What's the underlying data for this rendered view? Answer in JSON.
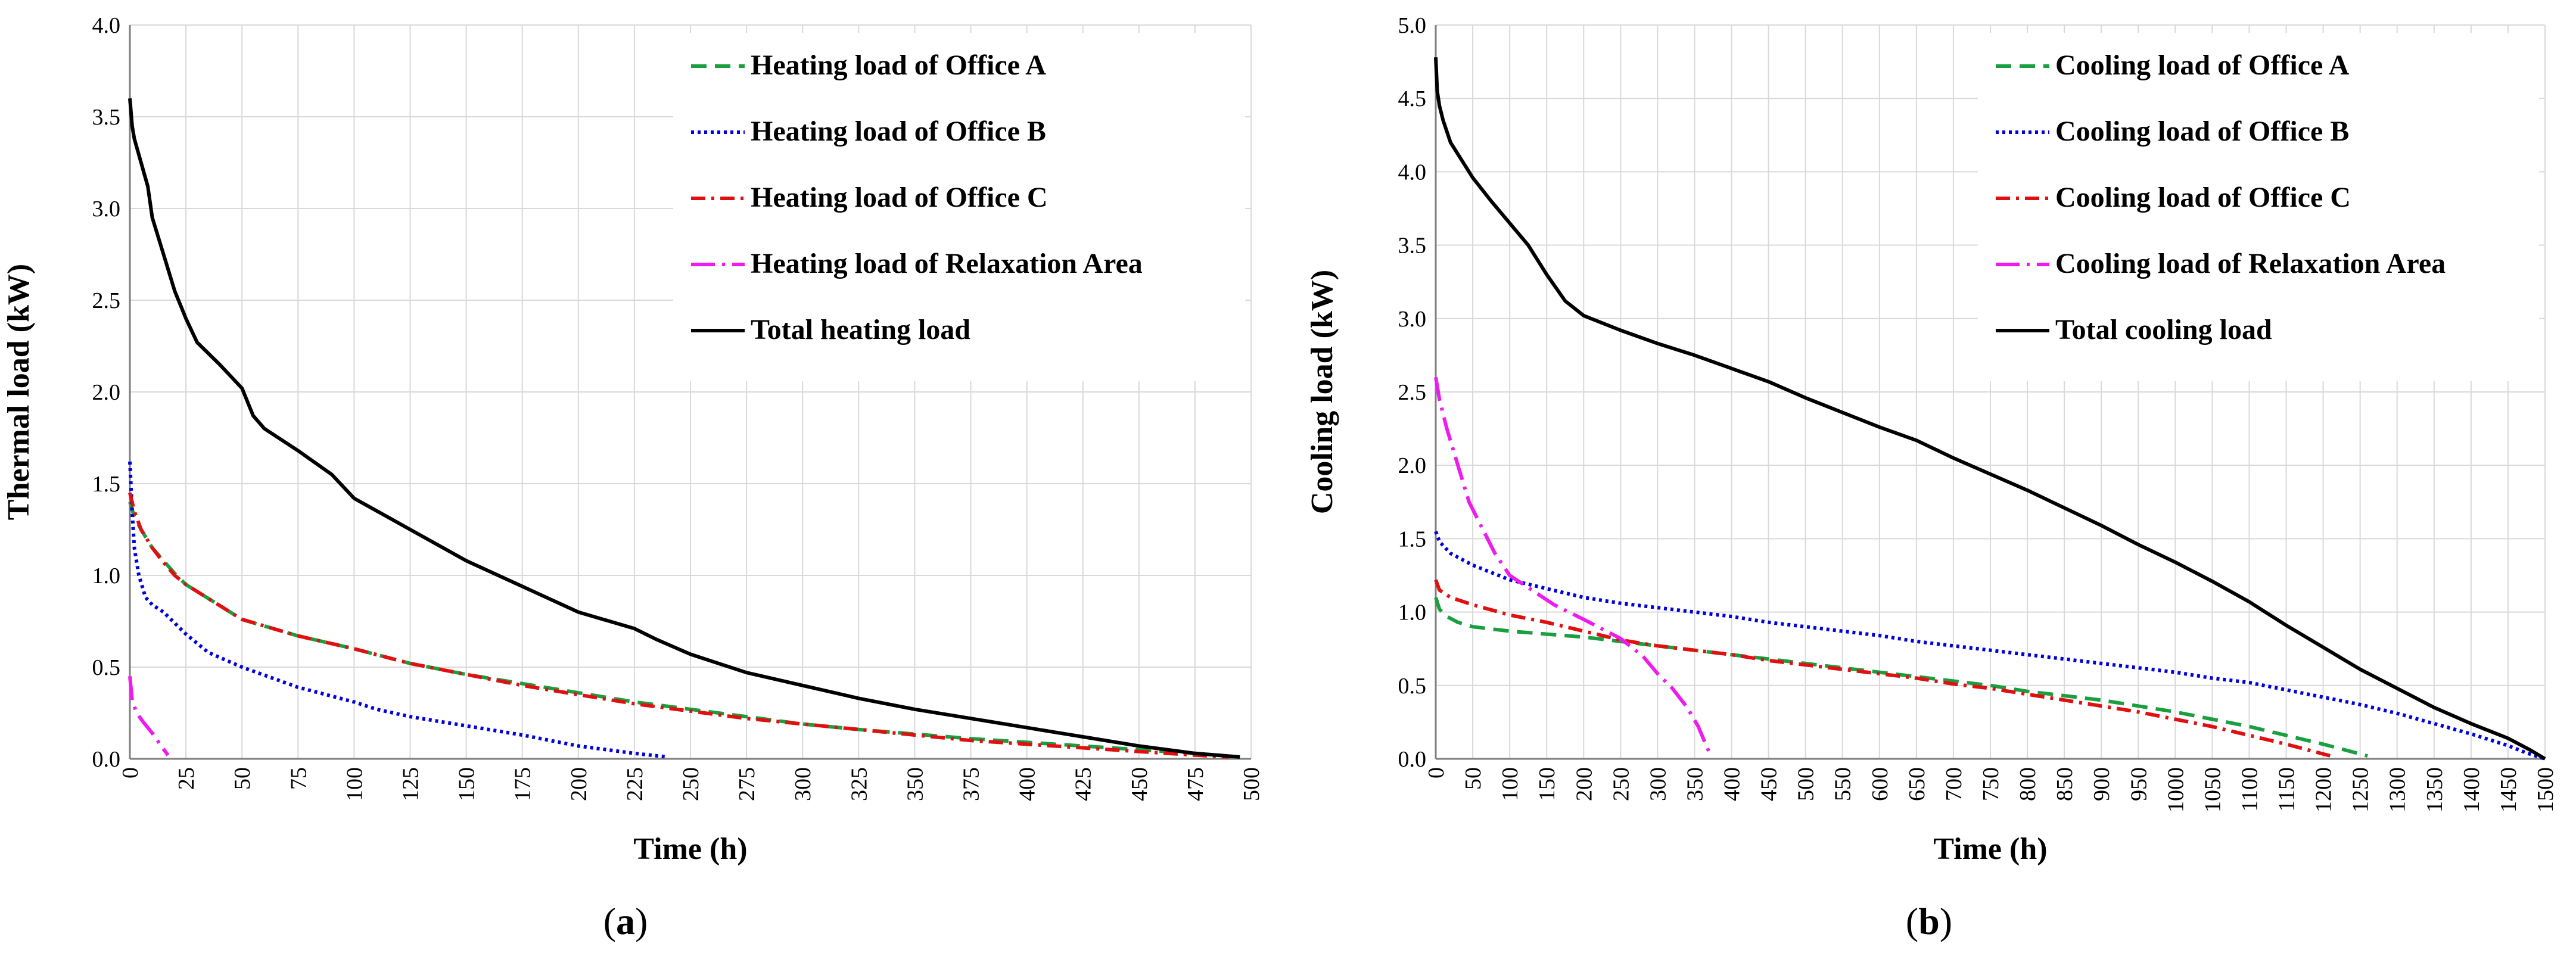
{
  "figure": {
    "panels": [
      {
        "open": "(",
        "letter": "a",
        "close": ")"
      },
      {
        "open": "(",
        "letter": "b",
        "close": ")"
      }
    ]
  },
  "chart_data": [
    {
      "type": "line",
      "title": "",
      "xlabel": "Time (h)",
      "ylabel": "Thermal load (kW)",
      "xlim": [
        0,
        500
      ],
      "ylim": [
        0,
        4
      ],
      "xticks": [
        0,
        25,
        50,
        75,
        100,
        125,
        150,
        175,
        200,
        225,
        250,
        275,
        300,
        325,
        350,
        375,
        400,
        425,
        450,
        475,
        500
      ],
      "yticks": [
        0,
        0.5,
        1,
        1.5,
        2,
        2.5,
        3,
        3.5,
        4
      ],
      "ytick_labels": [
        "0.0",
        "0.5",
        "1.0",
        "1.5",
        "2.0",
        "2.5",
        "3.0",
        "3.5",
        "4.0"
      ],
      "grid": true,
      "legend": "top-right",
      "series": [
        {
          "name": "Heating load of Office A",
          "color": "#1a9e3f",
          "dash": "dash",
          "x": [
            0,
            2,
            5,
            10,
            15,
            20,
            25,
            50,
            75,
            100,
            125,
            150,
            175,
            200,
            225,
            250,
            275,
            300,
            325,
            350,
            375,
            400,
            425,
            450,
            475,
            495
          ],
          "y": [
            1.4,
            1.32,
            1.25,
            1.15,
            1.08,
            1.01,
            0.95,
            0.76,
            0.67,
            0.6,
            0.52,
            0.46,
            0.41,
            0.36,
            0.31,
            0.27,
            0.23,
            0.19,
            0.16,
            0.135,
            0.11,
            0.09,
            0.07,
            0.05,
            0.03,
            0.01
          ]
        },
        {
          "name": "Heating load of Office B",
          "color": "#0000dd",
          "dash": "dot",
          "x": [
            0,
            1,
            2,
            4,
            7,
            10,
            15,
            20,
            25,
            35,
            50,
            75,
            100,
            110,
            125,
            150,
            175,
            200,
            225,
            240
          ],
          "y": [
            1.62,
            1.35,
            1.15,
            1.0,
            0.88,
            0.84,
            0.8,
            0.74,
            0.68,
            0.58,
            0.5,
            0.39,
            0.31,
            0.27,
            0.23,
            0.18,
            0.13,
            0.07,
            0.03,
            0.01
          ]
        },
        {
          "name": "Heating load of Office C",
          "color": "#e01010",
          "dash": "dashdot",
          "x": [
            0,
            2,
            5,
            10,
            15,
            20,
            25,
            50,
            75,
            100,
            125,
            150,
            175,
            200,
            225,
            250,
            275,
            300,
            325,
            350,
            375,
            400,
            425,
            450,
            475,
            490
          ],
          "y": [
            1.45,
            1.35,
            1.25,
            1.15,
            1.07,
            1.0,
            0.95,
            0.76,
            0.67,
            0.6,
            0.52,
            0.46,
            0.4,
            0.35,
            0.3,
            0.26,
            0.22,
            0.19,
            0.16,
            0.13,
            0.1,
            0.08,
            0.06,
            0.04,
            0.02,
            0.01
          ]
        },
        {
          "name": "Heating load of Relaxation Area",
          "color": "#ee1aee",
          "dash": "longdashdot",
          "x": [
            0,
            1,
            3,
            6,
            10,
            14,
            17
          ],
          "y": [
            0.45,
            0.32,
            0.25,
            0.2,
            0.14,
            0.07,
            0.02
          ]
        },
        {
          "name": "Total heating load",
          "color": "#000000",
          "dash": "solid",
          "x": [
            0,
            1,
            2,
            5,
            8,
            10,
            15,
            20,
            25,
            30,
            40,
            50,
            55,
            60,
            75,
            90,
            100,
            125,
            150,
            175,
            200,
            225,
            235,
            250,
            275,
            300,
            325,
            350,
            375,
            400,
            425,
            450,
            475,
            495
          ],
          "y": [
            3.6,
            3.45,
            3.38,
            3.25,
            3.12,
            2.95,
            2.75,
            2.55,
            2.4,
            2.27,
            2.15,
            2.02,
            1.87,
            1.8,
            1.68,
            1.55,
            1.42,
            1.25,
            1.08,
            0.94,
            0.8,
            0.71,
            0.65,
            0.57,
            0.47,
            0.4,
            0.33,
            0.27,
            0.22,
            0.17,
            0.12,
            0.07,
            0.03,
            0.01
          ]
        }
      ]
    },
    {
      "type": "line",
      "title": "",
      "xlabel": "Time (h)",
      "ylabel": "Cooling load (kW)",
      "xlim": [
        0,
        1500
      ],
      "ylim": [
        0,
        5
      ],
      "xticks": [
        0,
        50,
        100,
        150,
        200,
        250,
        300,
        350,
        400,
        450,
        500,
        550,
        600,
        650,
        700,
        750,
        800,
        850,
        900,
        950,
        1000,
        1050,
        1100,
        1150,
        1200,
        1250,
        1300,
        1350,
        1400,
        1450,
        1500
      ],
      "yticks": [
        0,
        0.5,
        1,
        1.5,
        2,
        2.5,
        3,
        3.5,
        4,
        4.5,
        5
      ],
      "ytick_labels": [
        "0.0",
        "0.5",
        "1.0",
        "1.5",
        "2.0",
        "2.5",
        "3.0",
        "3.5",
        "4.0",
        "4.5",
        "5.0"
      ],
      "grid": true,
      "legend": "top-right",
      "series": [
        {
          "name": "Cooling load of Office A",
          "color": "#1a9e3f",
          "dash": "dash",
          "x": [
            0,
            5,
            15,
            30,
            50,
            100,
            150,
            200,
            250,
            300,
            350,
            400,
            450,
            500,
            550,
            600,
            650,
            700,
            750,
            800,
            850,
            900,
            950,
            1000,
            1050,
            1100,
            1150,
            1200,
            1230,
            1260
          ],
          "y": [
            1.1,
            1.02,
            0.97,
            0.93,
            0.9,
            0.87,
            0.85,
            0.83,
            0.8,
            0.77,
            0.74,
            0.71,
            0.68,
            0.65,
            0.62,
            0.59,
            0.56,
            0.53,
            0.5,
            0.46,
            0.43,
            0.4,
            0.36,
            0.32,
            0.27,
            0.22,
            0.16,
            0.1,
            0.06,
            0.02
          ]
        },
        {
          "name": "Cooling load of Office B",
          "color": "#0000dd",
          "dash": "dot",
          "x": [
            0,
            5,
            20,
            50,
            100,
            150,
            200,
            250,
            300,
            350,
            400,
            450,
            500,
            550,
            600,
            650,
            700,
            750,
            800,
            850,
            900,
            950,
            1000,
            1050,
            1100,
            1150,
            1200,
            1250,
            1300,
            1350,
            1400,
            1450,
            1475,
            1500
          ],
          "y": [
            1.55,
            1.48,
            1.4,
            1.32,
            1.22,
            1.16,
            1.1,
            1.06,
            1.03,
            1.0,
            0.97,
            0.93,
            0.9,
            0.87,
            0.84,
            0.8,
            0.77,
            0.74,
            0.71,
            0.68,
            0.65,
            0.62,
            0.59,
            0.55,
            0.52,
            0.47,
            0.42,
            0.37,
            0.31,
            0.24,
            0.17,
            0.09,
            0.04,
            0.0
          ]
        },
        {
          "name": "Cooling load of Office C",
          "color": "#e01010",
          "dash": "dashdot",
          "x": [
            0,
            5,
            20,
            50,
            100,
            150,
            200,
            250,
            300,
            350,
            400,
            450,
            500,
            550,
            600,
            650,
            700,
            750,
            800,
            850,
            900,
            950,
            1000,
            1050,
            1100,
            1150,
            1180,
            1210
          ],
          "y": [
            1.22,
            1.15,
            1.1,
            1.05,
            0.98,
            0.93,
            0.87,
            0.81,
            0.77,
            0.74,
            0.71,
            0.67,
            0.64,
            0.61,
            0.58,
            0.55,
            0.51,
            0.48,
            0.44,
            0.4,
            0.36,
            0.32,
            0.27,
            0.22,
            0.16,
            0.1,
            0.06,
            0.02
          ]
        },
        {
          "name": "Cooling load of Relaxation Area",
          "color": "#ee1aee",
          "dash": "longdashdot",
          "x": [
            0,
            5,
            15,
            30,
            45,
            60,
            80,
            100,
            130,
            160,
            200,
            250,
            280,
            300,
            320,
            340,
            355,
            365,
            372
          ],
          "y": [
            2.6,
            2.45,
            2.25,
            2.0,
            1.75,
            1.6,
            1.4,
            1.25,
            1.15,
            1.05,
            0.95,
            0.82,
            0.7,
            0.58,
            0.48,
            0.35,
            0.22,
            0.1,
            0.02
          ]
        },
        {
          "name": "Total cooling load",
          "color": "#000000",
          "dash": "solid",
          "x": [
            0,
            2,
            5,
            10,
            20,
            30,
            50,
            75,
            100,
            125,
            150,
            175,
            200,
            250,
            300,
            350,
            400,
            450,
            500,
            550,
            600,
            650,
            700,
            750,
            800,
            850,
            900,
            950,
            1000,
            1050,
            1100,
            1150,
            1200,
            1250,
            1300,
            1350,
            1400,
            1450,
            1480,
            1500
          ],
          "y": [
            4.78,
            4.55,
            4.45,
            4.35,
            4.2,
            4.12,
            3.96,
            3.8,
            3.65,
            3.5,
            3.3,
            3.12,
            3.02,
            2.92,
            2.83,
            2.75,
            2.66,
            2.57,
            2.46,
            2.36,
            2.26,
            2.17,
            2.05,
            1.94,
            1.83,
            1.71,
            1.59,
            1.46,
            1.34,
            1.21,
            1.07,
            0.91,
            0.76,
            0.61,
            0.48,
            0.35,
            0.24,
            0.14,
            0.06,
            0.0
          ]
        }
      ]
    }
  ]
}
